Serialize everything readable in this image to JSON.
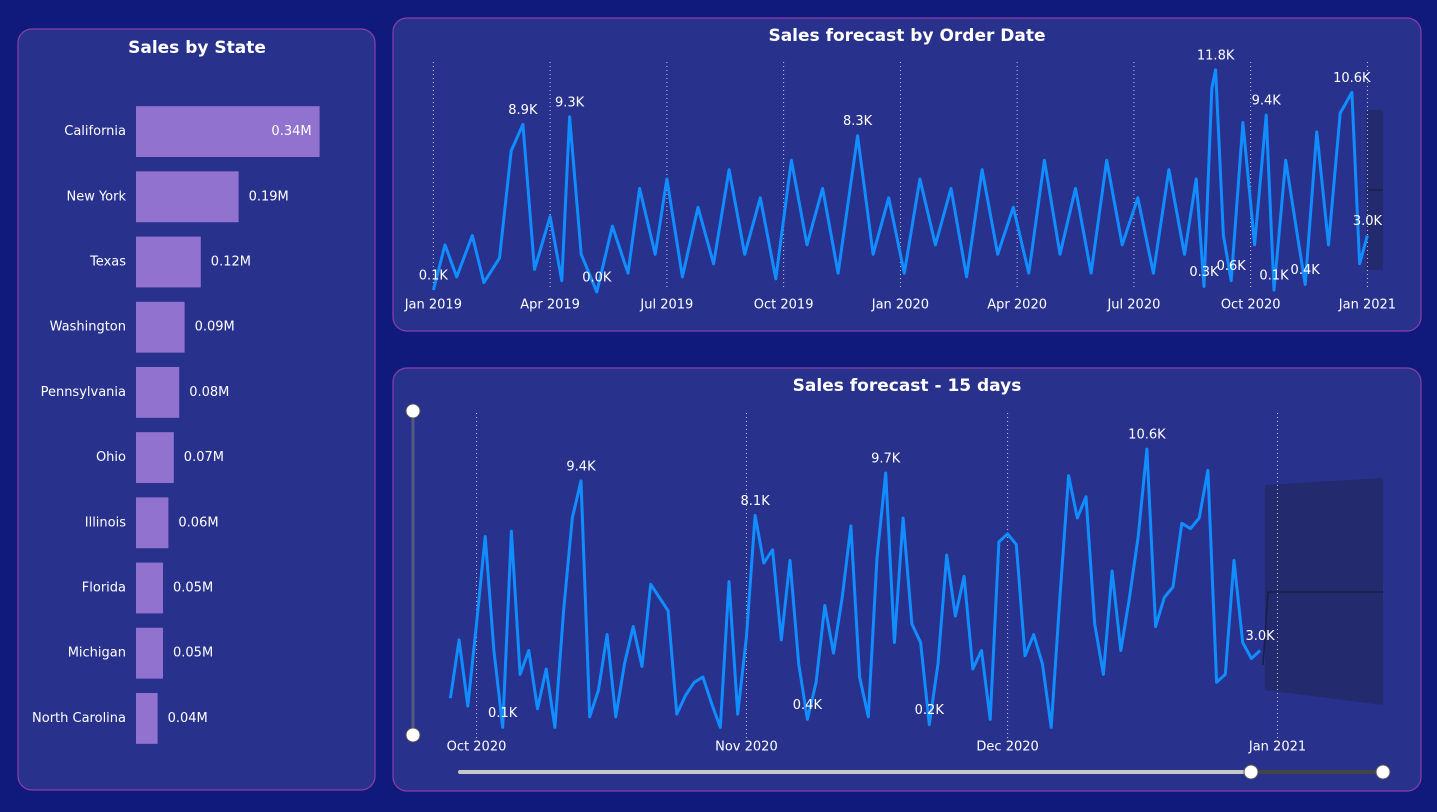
{
  "chart_data": [
    {
      "type": "bar",
      "orientation": "horizontal",
      "title": "Sales by State",
      "color": "#9172cf",
      "categories": [
        "California",
        "New York",
        "Texas",
        "Washington",
        "Pennsylvania",
        "Ohio",
        "Illinois",
        "Florida",
        "Michigan",
        "North Carolina"
      ],
      "values": [
        0.34,
        0.19,
        0.12,
        0.09,
        0.08,
        0.07,
        0.06,
        0.05,
        0.05,
        0.04
      ],
      "value_labels": [
        "0.34M",
        "0.19M",
        "0.12M",
        "0.09M",
        "0.08M",
        "0.07M",
        "0.06M",
        "0.05M",
        "0.05M",
        "0.04M"
      ],
      "xlim": [
        0,
        0.4
      ]
    },
    {
      "type": "line",
      "title": "Sales forecast by Order Date",
      "color": "#118dff",
      "grid": true,
      "x": [
        0,
        0.3,
        0.6,
        1.0,
        1.3,
        1.7,
        2.0,
        2.3,
        2.6,
        3.0,
        3.3,
        3.5,
        3.8,
        4.2,
        4.6,
        5.0,
        5.3,
        5.7,
        6.0,
        6.4,
        6.8,
        7.2,
        7.6,
        8.0,
        8.4,
        8.8,
        9.2,
        9.6,
        10.0,
        10.4,
        10.9,
        11.3,
        11.7,
        12.1,
        12.5,
        12.9,
        13.3,
        13.7,
        14.1,
        14.5,
        14.9,
        15.3,
        15.7,
        16.1,
        16.5,
        16.9,
        17.3,
        17.7,
        18.1,
        18.5,
        18.9,
        19.3,
        19.6,
        19.8,
        20.0,
        20.1,
        20.3,
        20.5,
        20.8,
        21.1,
        21.4,
        21.6,
        21.9,
        22.2,
        22.4,
        22.7,
        23.0,
        23.3,
        23.6,
        23.8,
        24.0
      ],
      "values": [
        0.1,
        2.5,
        0.8,
        3.0,
        0.5,
        1.8,
        7.5,
        8.9,
        1.2,
        4.0,
        0.6,
        9.3,
        2.0,
        0.0,
        3.5,
        1.0,
        5.5,
        2.0,
        6.0,
        0.8,
        4.5,
        1.5,
        6.5,
        2.0,
        5.0,
        0.7,
        7.0,
        2.5,
        5.5,
        1.0,
        8.3,
        2.0,
        5.0,
        1.0,
        6.0,
        2.5,
        5.5,
        0.8,
        6.5,
        2.0,
        4.5,
        1.0,
        7.0,
        2.0,
        5.5,
        1.0,
        7.0,
        2.5,
        5.0,
        1.0,
        6.5,
        2.0,
        6.0,
        0.3,
        10.8,
        11.8,
        3.0,
        0.6,
        9.0,
        2.5,
        9.4,
        0.1,
        7.0,
        3.0,
        0.4,
        8.5,
        2.5,
        9.5,
        10.6,
        1.5,
        3.0
      ],
      "value_labels": [
        "0.1K",
        null,
        null,
        null,
        null,
        null,
        null,
        "8.9K",
        null,
        null,
        null,
        "9.3K",
        null,
        "0.0K",
        null,
        null,
        null,
        null,
        null,
        null,
        null,
        null,
        null,
        null,
        null,
        null,
        null,
        null,
        null,
        null,
        "8.3K",
        null,
        null,
        null,
        null,
        null,
        null,
        null,
        null,
        null,
        null,
        null,
        null,
        null,
        null,
        null,
        null,
        null,
        null,
        null,
        null,
        null,
        null,
        "0.3K",
        null,
        "11.8K",
        null,
        "0.6K",
        null,
        null,
        "9.4K",
        "0.1K",
        null,
        null,
        "0.4K",
        null,
        null,
        null,
        "10.6K",
        null,
        "3.0K"
      ],
      "xlim": [
        -0.6,
        24.4
      ],
      "ylim": [
        0,
        12
      ],
      "xticks": [
        {
          "value": 0,
          "label": "Jan 2019"
        },
        {
          "value": 3,
          "label": "Apr 2019"
        },
        {
          "value": 6,
          "label": "Jul 2019"
        },
        {
          "value": 9,
          "label": "Oct 2019"
        },
        {
          "value": 12,
          "label": "Jan 2020"
        },
        {
          "value": 15,
          "label": "Apr 2020"
        },
        {
          "value": 18,
          "label": "Jul 2020"
        },
        {
          "value": 21,
          "label": "Oct 2020"
        },
        {
          "value": 24,
          "label": "Jan 2021"
        }
      ]
    },
    {
      "type": "line",
      "title": "Sales forecast - 15 days",
      "color": "#118dff",
      "grid": true,
      "x": [
        -3,
        -2,
        -1,
        0,
        1,
        2,
        3,
        4,
        5,
        6,
        7,
        8,
        9,
        10,
        11,
        12,
        13,
        14,
        15,
        16,
        17,
        18,
        19,
        20,
        21,
        22,
        23,
        24,
        25,
        26,
        27,
        28,
        29,
        30,
        31,
        32,
        33,
        34,
        35,
        36,
        37,
        38,
        39,
        40,
        41,
        42,
        43,
        44,
        45,
        46,
        47,
        48,
        49,
        50,
        51,
        52,
        53,
        54,
        55,
        56,
        57,
        58,
        59,
        60,
        61,
        62,
        63,
        64,
        65,
        66,
        67,
        68,
        69,
        70,
        71,
        72,
        73,
        74,
        75,
        76,
        77,
        78,
        79,
        80,
        81,
        82,
        83,
        84,
        85,
        86,
        87,
        88,
        89,
        90
      ],
      "values": [
        1.2,
        3.4,
        0.9,
        4.0,
        7.3,
        3.0,
        0.1,
        7.5,
        2.1,
        3.0,
        0.8,
        2.3,
        0.1,
        4.5,
        8.0,
        9.4,
        0.5,
        1.5,
        3.6,
        0.5,
        2.5,
        3.9,
        2.4,
        5.5,
        5.0,
        4.5,
        0.6,
        1.3,
        1.8,
        2.0,
        1.0,
        0.1,
        5.6,
        0.6,
        3.5,
        8.1,
        6.3,
        6.8,
        3.4,
        6.4,
        2.5,
        0.4,
        1.8,
        4.7,
        2.9,
        5.0,
        7.7,
        2.0,
        0.5,
        6.5,
        9.7,
        3.3,
        8.0,
        4.0,
        3.3,
        0.2,
        2.5,
        6.6,
        4.3,
        5.8,
        2.3,
        3.0,
        0.4,
        7.1,
        7.4,
        7.0,
        2.8,
        3.6,
        2.5,
        0.1,
        5.0,
        9.6,
        8.0,
        8.8,
        4.0,
        2.1,
        6.0,
        3.0,
        5.0,
        7.3,
        10.6,
        3.9,
        5.0,
        5.4,
        7.8,
        7.6,
        8.0,
        9.8,
        1.8,
        2.1,
        6.4,
        3.3,
        2.7,
        3.0
      ],
      "value_labels": [
        null,
        null,
        null,
        null,
        null,
        null,
        "0.1K",
        null,
        null,
        null,
        null,
        null,
        null,
        null,
        null,
        "9.4K",
        null,
        null,
        null,
        null,
        null,
        null,
        null,
        null,
        null,
        null,
        null,
        null,
        null,
        null,
        null,
        null,
        null,
        null,
        null,
        "8.1K",
        null,
        null,
        null,
        null,
        null,
        "0.4K",
        null,
        null,
        null,
        null,
        null,
        null,
        null,
        null,
        "9.7K",
        null,
        null,
        null,
        null,
        "0.2K",
        null,
        null,
        null,
        null,
        null,
        null,
        null,
        null,
        null,
        null,
        null,
        null,
        null,
        null,
        null,
        null,
        null,
        null,
        null,
        null,
        null,
        null,
        null,
        null,
        "10.6K",
        null,
        null,
        null,
        null,
        null,
        null,
        null,
        null,
        null,
        null,
        null,
        null,
        "3.0K"
      ],
      "xlim": [
        -5,
        104
      ],
      "ylim": [
        0,
        11
      ],
      "xticks": [
        {
          "value": 0,
          "label": "Oct 2020"
        },
        {
          "value": 31,
          "label": "Nov 2020"
        },
        {
          "value": 61,
          "label": "Dec 2020"
        },
        {
          "value": 92,
          "label": "Jan 2021"
        }
      ]
    }
  ]
}
